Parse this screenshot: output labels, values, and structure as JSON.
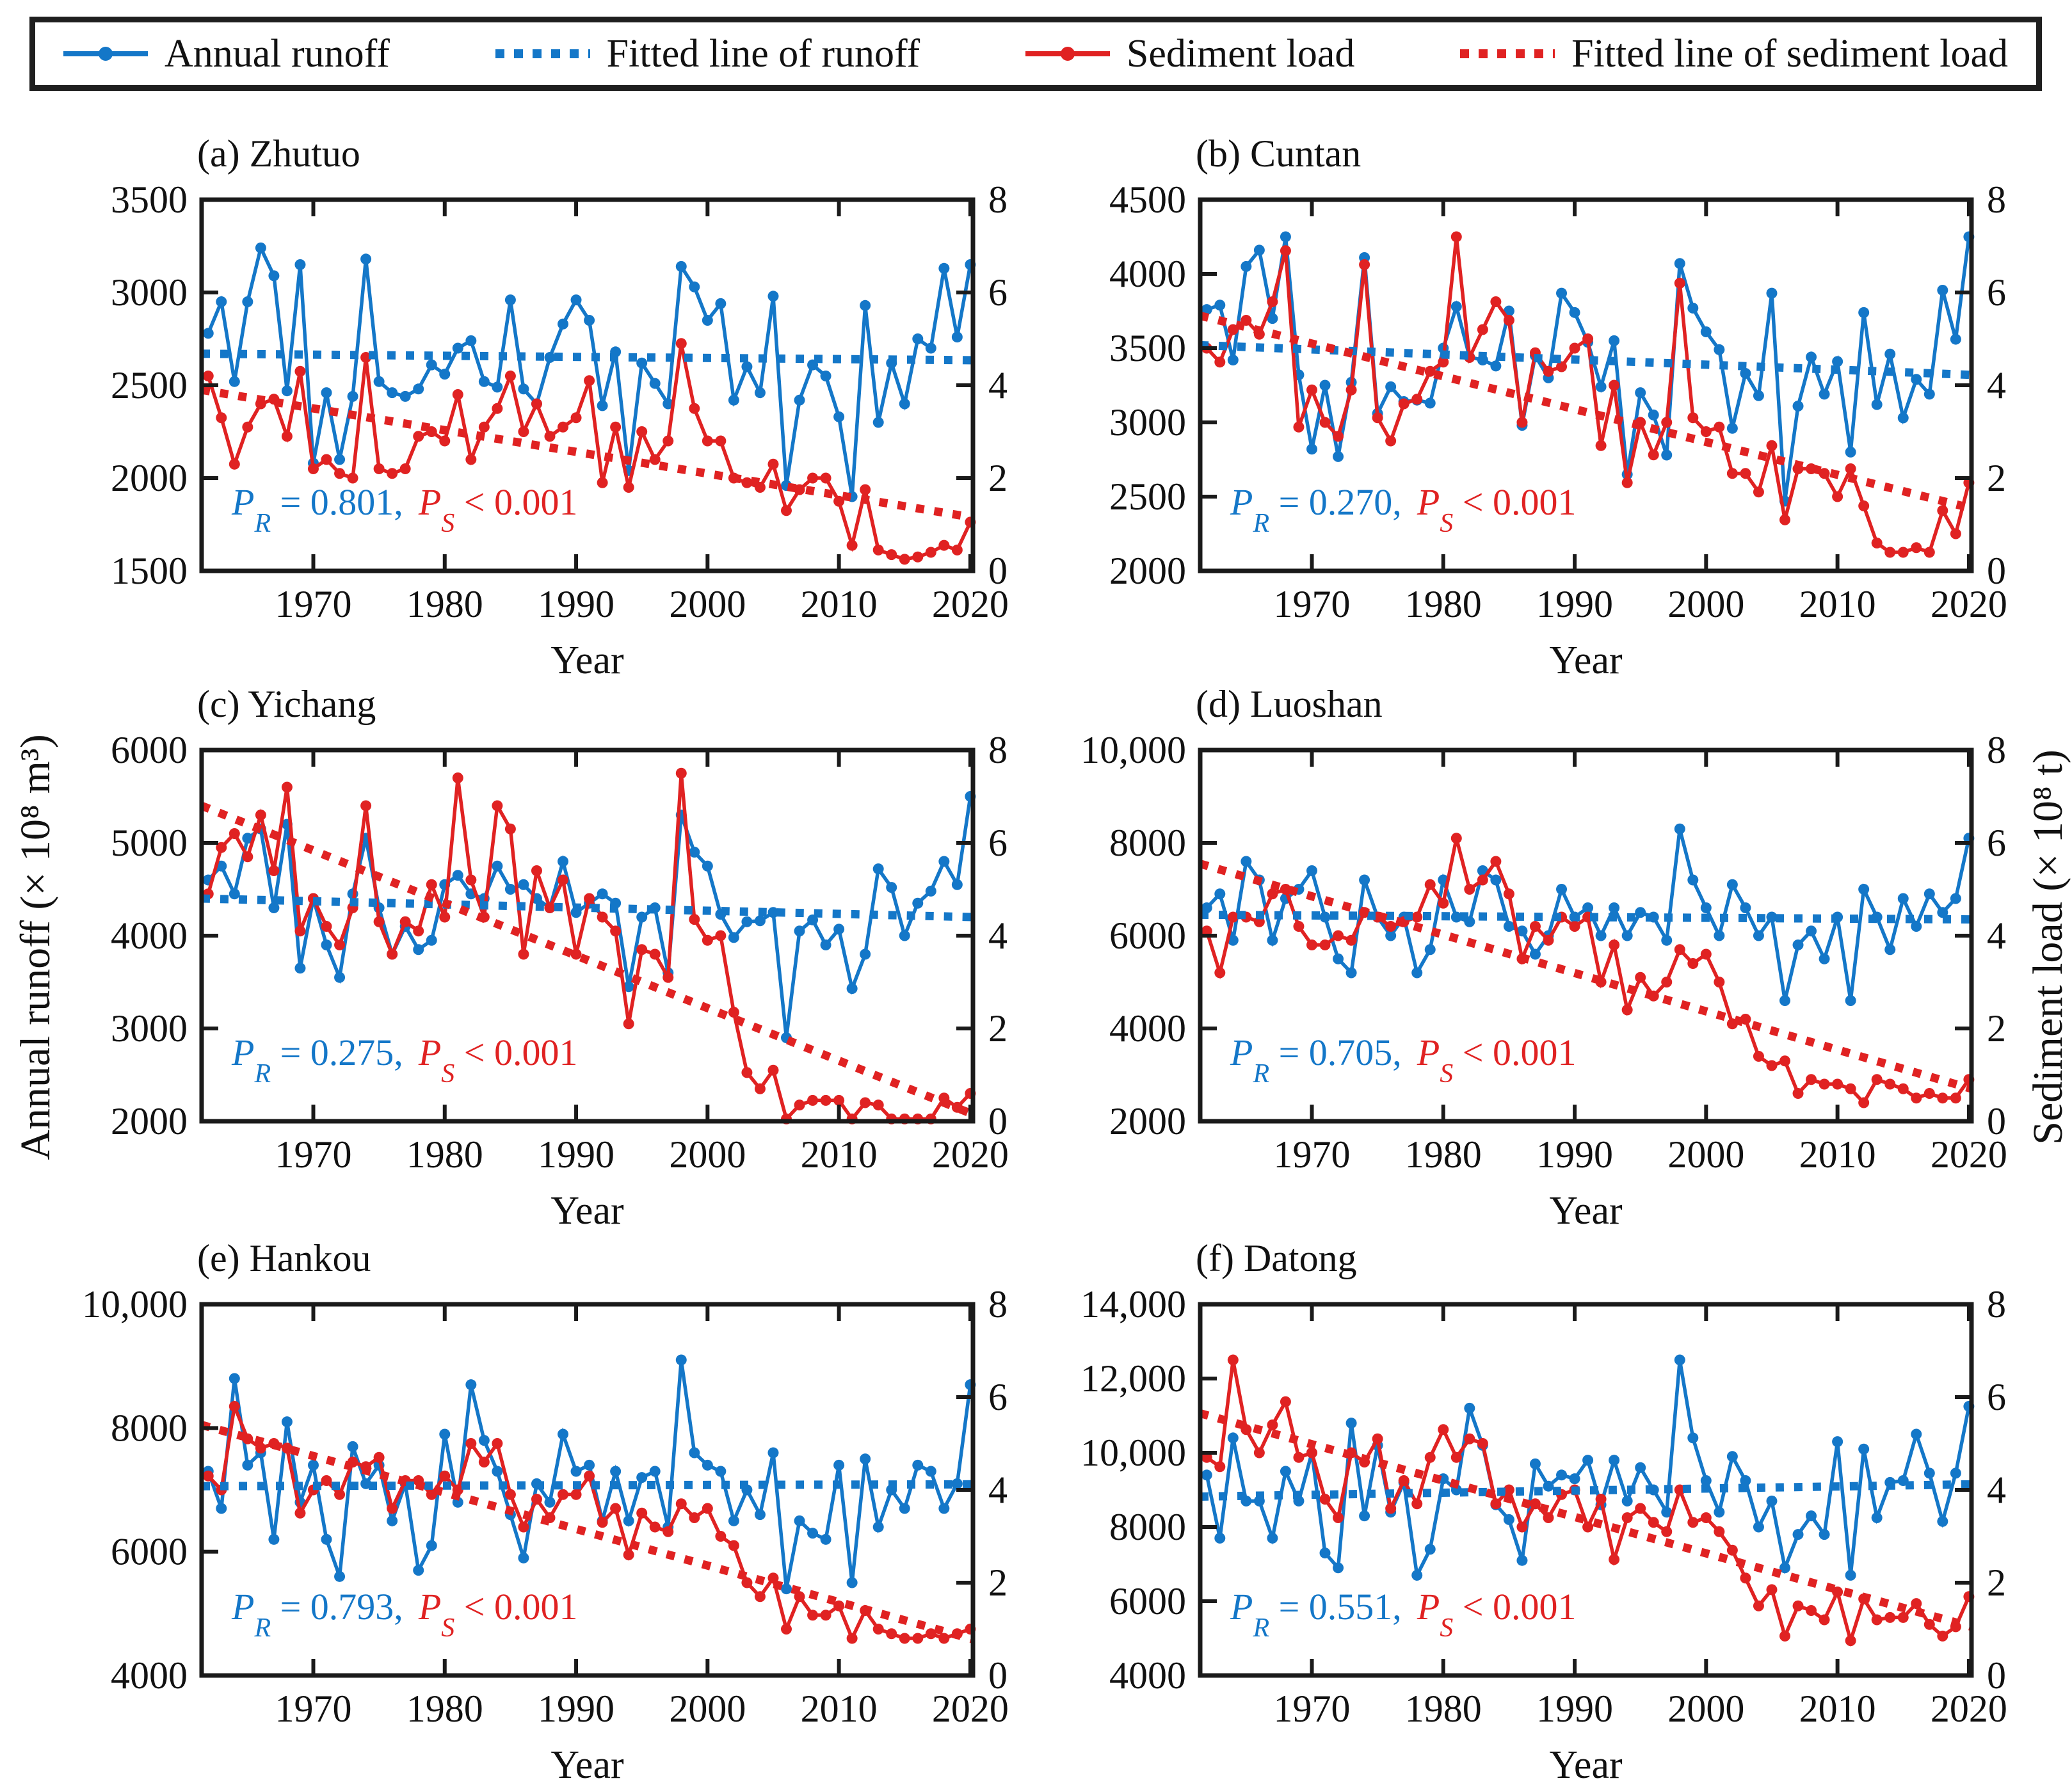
{
  "legend": {
    "border_color": "#1f1f1f",
    "items": [
      {
        "label": "Annual runoff",
        "color": "#1477C8",
        "style": "solid-with-dot"
      },
      {
        "label": "Fitted line of runoff",
        "color": "#1477C8",
        "style": "dotted"
      },
      {
        "label": "Sediment load",
        "color": "#E02222",
        "style": "solid-with-dot"
      },
      {
        "label": "Fitted line of sediment load",
        "color": "#E02222",
        "style": "dotted"
      }
    ]
  },
  "labels": {
    "left_axis": "Annual runoff (× 10⁸ m³)",
    "right_axis": "Sediment load (× 10⁸ t)",
    "x_axis": "Year",
    "p_symbol": "P",
    "runoff_sub": "R",
    "sed_sub": "S"
  },
  "colors": {
    "runoff": "#1477C8",
    "sediment": "#E02222",
    "frame": "#1a1a1a"
  },
  "chart_data": {
    "type": "line",
    "x": {
      "start_year": 1962,
      "end_year": 2020,
      "xlim": [
        1961.5,
        2020.2
      ],
      "ticks": [
        1970,
        1980,
        1990,
        2000,
        2010,
        2020
      ]
    },
    "right_ylim": [
      0,
      8
    ],
    "right_ticks": [
      0,
      2,
      4,
      6,
      8
    ],
    "legend_position": "top",
    "grid": false,
    "panels": [
      {
        "id": "a",
        "title": "(a) Zhutuo",
        "pr_text": " = 0.801,",
        "ps_text": " < 0.001",
        "runoff_ylim": [
          1500,
          3500
        ],
        "runoff_ticks": [
          1500,
          2000,
          2500,
          3000,
          3500
        ],
        "runoff": [
          2780,
          2950,
          2520,
          2950,
          3240,
          3090,
          2470,
          3150,
          2080,
          2460,
          2100,
          2440,
          3180,
          2520,
          2460,
          2440,
          2480,
          2610,
          2560,
          2700,
          2740,
          2520,
          2490,
          2960,
          2480,
          2400,
          2650,
          2830,
          2960,
          2850,
          2390,
          2680,
          2040,
          2620,
          2510,
          2400,
          3140,
          3030,
          2850,
          2940,
          2420,
          2600,
          2460,
          2980,
          1960,
          2420,
          2610,
          2550,
          2330,
          1900,
          2930,
          2300,
          2620,
          2400,
          2750,
          2700,
          3130,
          2760,
          3150
        ],
        "sediment": [
          4.2,
          3.3,
          2.3,
          3.1,
          3.6,
          3.7,
          2.9,
          4.3,
          2.2,
          2.4,
          2.1,
          2.0,
          4.6,
          2.2,
          2.1,
          2.2,
          2.9,
          3.0,
          2.8,
          3.8,
          2.4,
          3.1,
          3.5,
          4.2,
          3.0,
          3.6,
          2.9,
          3.1,
          3.3,
          4.1,
          1.9,
          3.1,
          1.8,
          3.0,
          2.4,
          2.8,
          4.9,
          3.5,
          2.8,
          2.8,
          2.0,
          1.9,
          1.8,
          2.3,
          1.3,
          1.75,
          2.0,
          2.0,
          1.5,
          0.55,
          1.75,
          0.45,
          0.35,
          0.25,
          0.3,
          0.4,
          0.55,
          0.45,
          1.05
        ],
        "runoff_fit": [
          2670,
          2635
        ],
        "sediment_fit": [
          3.9,
          1.15
        ]
      },
      {
        "id": "b",
        "title": "(b) Cuntan",
        "pr_text": " = 0.270,",
        "ps_text": " < 0.001",
        "runoff_ylim": [
          2000,
          4500
        ],
        "runoff_ticks": [
          2000,
          2500,
          3000,
          3500,
          4000,
          4500
        ],
        "runoff": [
          3760,
          3790,
          3420,
          4050,
          4160,
          3700,
          4250,
          3320,
          2820,
          3250,
          2770,
          3270,
          4110,
          3060,
          3240,
          3140,
          3150,
          3130,
          3500,
          3780,
          3440,
          3420,
          3380,
          3750,
          2980,
          3450,
          3300,
          3870,
          3740,
          3540,
          3240,
          3550,
          2650,
          3200,
          3050,
          2780,
          4070,
          3770,
          3610,
          3490,
          2960,
          3330,
          3180,
          3870,
          2470,
          3110,
          3440,
          3190,
          3410,
          2800,
          3740,
          3120,
          3460,
          3030,
          3290,
          3190,
          3890,
          3560,
          4250
        ],
        "sediment": [
          4.8,
          4.5,
          5.2,
          5.4,
          5.1,
          5.8,
          6.9,
          3.1,
          3.9,
          3.2,
          2.9,
          3.9,
          6.6,
          3.3,
          2.8,
          3.6,
          3.7,
          4.3,
          4.5,
          7.2,
          4.6,
          5.2,
          5.8,
          5.4,
          3.2,
          4.7,
          4.3,
          4.4,
          4.8,
          5.0,
          2.7,
          4.0,
          1.9,
          3.2,
          2.5,
          3.2,
          6.2,
          3.3,
          3.0,
          3.1,
          2.1,
          2.1,
          1.7,
          2.7,
          1.1,
          2.2,
          2.2,
          2.1,
          1.6,
          2.2,
          1.4,
          0.6,
          0.4,
          0.4,
          0.5,
          0.4,
          1.3,
          0.8,
          1.9
        ],
        "runoff_fit": [
          3520,
          3320
        ],
        "sediment_fit": [
          5.5,
          1.35
        ]
      },
      {
        "id": "c",
        "title": "(c) Yichang",
        "pr_text": " = 0.275,",
        "ps_text": " < 0.001",
        "runoff_ylim": [
          2000,
          6000
        ],
        "runoff_ticks": [
          2000,
          3000,
          4000,
          5000,
          6000
        ],
        "runoff": [
          4600,
          4750,
          4450,
          5050,
          5150,
          4300,
          5200,
          3650,
          4400,
          3900,
          3550,
          4450,
          5050,
          4300,
          3800,
          4100,
          3850,
          3950,
          4550,
          4650,
          4450,
          4400,
          4750,
          4500,
          4550,
          4400,
          4300,
          4800,
          4250,
          4350,
          4450,
          4350,
          3450,
          4200,
          4300,
          3600,
          5300,
          4900,
          4750,
          4230,
          3980,
          4150,
          4160,
          4250,
          2900,
          4050,
          4170,
          3900,
          4070,
          3430,
          3800,
          4720,
          4520,
          4000,
          4350,
          4480,
          4800,
          4550,
          5500
        ],
        "sediment": [
          4.9,
          5.9,
          6.2,
          5.7,
          6.6,
          5.4,
          7.2,
          4.1,
          4.8,
          4.2,
          3.8,
          4.6,
          6.8,
          4.3,
          3.6,
          4.3,
          4.1,
          5.1,
          4.4,
          7.4,
          5.2,
          4.4,
          6.8,
          6.3,
          3.6,
          5.4,
          4.6,
          5.2,
          3.6,
          4.8,
          4.4,
          4.1,
          2.1,
          3.7,
          3.6,
          3.1,
          7.5,
          4.35,
          3.9,
          4.0,
          2.35,
          1.05,
          0.7,
          1.1,
          0.05,
          0.35,
          0.45,
          0.45,
          0.45,
          0.05,
          0.4,
          0.35,
          0.05,
          0.05,
          0.05,
          0.05,
          0.5,
          0.3,
          0.6
        ],
        "runoff_fit": [
          4400,
          4200
        ],
        "sediment_fit": [
          6.8,
          0.15
        ]
      },
      {
        "id": "d",
        "title": "(d) Luoshan",
        "pr_text": " = 0.705,",
        "ps_text": " < 0.001",
        "runoff_ylim": [
          2000,
          10000
        ],
        "runoff_ticks": [
          2000,
          4000,
          6000,
          8000,
          10000
        ],
        "runoff": [
          6600,
          6900,
          5900,
          7600,
          7200,
          5900,
          6800,
          7000,
          7400,
          6400,
          5500,
          5200,
          7200,
          6400,
          6000,
          6400,
          5200,
          5700,
          7200,
          6400,
          6300,
          7400,
          7200,
          6200,
          6100,
          5600,
          6000,
          7000,
          6400,
          6600,
          6000,
          6600,
          6000,
          6500,
          6400,
          5900,
          8300,
          7200,
          6600,
          6000,
          7100,
          6600,
          6000,
          6400,
          4600,
          5800,
          6100,
          5500,
          6400,
          4600,
          7000,
          6400,
          5700,
          6800,
          6200,
          6900,
          6500,
          6800,
          8100
        ],
        "sediment": [
          4.1,
          3.2,
          4.4,
          4.4,
          4.3,
          4.9,
          5.0,
          4.2,
          3.8,
          3.8,
          4.0,
          3.9,
          4.5,
          4.4,
          4.2,
          4.3,
          4.4,
          5.1,
          4.7,
          6.1,
          5.0,
          5.2,
          5.6,
          4.9,
          3.5,
          4.2,
          3.9,
          4.4,
          4.2,
          4.4,
          3.0,
          3.8,
          2.4,
          3.1,
          2.7,
          3.0,
          3.7,
          3.4,
          3.6,
          3.0,
          2.1,
          2.2,
          1.4,
          1.2,
          1.3,
          0.6,
          0.9,
          0.8,
          0.8,
          0.7,
          0.4,
          0.9,
          0.8,
          0.7,
          0.5,
          0.6,
          0.5,
          0.5,
          0.9
        ],
        "runoff_fit": [
          6450,
          6350
        ],
        "sediment_fit": [
          5.55,
          0.7
        ]
      },
      {
        "id": "e",
        "title": "(e) Hankou",
        "pr_text": " = 0.793,",
        "ps_text": " < 0.001",
        "runoff_ylim": [
          4000,
          10000
        ],
        "runoff_ticks": [
          4000,
          6000,
          8000,
          10000
        ],
        "runoff": [
          7300,
          6700,
          8800,
          7400,
          7600,
          6200,
          8100,
          6800,
          7400,
          6200,
          5600,
          7700,
          7100,
          7400,
          6500,
          7100,
          5700,
          6100,
          7900,
          6800,
          8700,
          7800,
          7300,
          6600,
          5900,
          7100,
          6800,
          7900,
          7300,
          7400,
          6500,
          7300,
          6500,
          7200,
          7300,
          6400,
          9100,
          7600,
          7400,
          7300,
          6500,
          7000,
          6600,
          7600,
          5400,
          6500,
          6300,
          6200,
          7400,
          5500,
          7500,
          6400,
          7000,
          6700,
          7400,
          7300,
          6700,
          7100,
          8700
        ],
        "sediment": [
          4.3,
          4.0,
          5.8,
          5.1,
          4.9,
          5.0,
          4.9,
          3.5,
          4.0,
          4.2,
          3.9,
          4.6,
          4.5,
          4.7,
          3.6,
          4.2,
          4.2,
          3.9,
          4.3,
          4.0,
          5.0,
          4.6,
          5.0,
          3.9,
          3.2,
          3.8,
          3.4,
          3.9,
          3.9,
          4.3,
          3.3,
          3.6,
          2.6,
          3.5,
          3.2,
          3.1,
          3.7,
          3.4,
          3.6,
          3.0,
          2.8,
          2.0,
          1.7,
          2.1,
          1.0,
          1.7,
          1.3,
          1.3,
          1.5,
          0.8,
          1.4,
          1.0,
          0.9,
          0.8,
          0.8,
          0.9,
          0.8,
          0.9,
          1.0
        ],
        "runoff_fit": [
          7060,
          7090
        ],
        "sediment_fit": [
          5.4,
          0.78
        ]
      },
      {
        "id": "f",
        "title": "(f) Datong",
        "pr_text": " = 0.551,",
        "ps_text": " < 0.001",
        "runoff_ylim": [
          4000,
          14000
        ],
        "runoff_ticks": [
          4000,
          6000,
          8000,
          10000,
          12000,
          14000
        ],
        "runoff": [
          9400,
          7700,
          10400,
          8700,
          8700,
          7700,
          9500,
          8700,
          10000,
          7300,
          6900,
          10800,
          8300,
          10200,
          8400,
          9200,
          6700,
          7400,
          9300,
          9000,
          11200,
          10200,
          8600,
          8200,
          7100,
          9700,
          9100,
          9400,
          9300,
          9800,
          8600,
          9800,
          8700,
          9600,
          9000,
          8400,
          12500,
          10400,
          9250,
          8400,
          9900,
          9250,
          8000,
          8700,
          6900,
          7800,
          8300,
          7800,
          10300,
          6700,
          10100,
          8250,
          9200,
          9250,
          10500,
          9450,
          8150,
          9450,
          11250
        ],
        "sediment": [
          4.7,
          4.5,
          6.8,
          5.3,
          4.8,
          5.4,
          5.9,
          4.7,
          4.8,
          3.8,
          3.4,
          4.8,
          4.6,
          5.1,
          3.6,
          4.2,
          3.7,
          4.7,
          5.3,
          4.7,
          5.1,
          5.0,
          3.7,
          4.0,
          3.2,
          3.7,
          3.4,
          3.9,
          4.0,
          3.2,
          3.8,
          2.5,
          3.4,
          3.6,
          3.3,
          3.1,
          4.0,
          3.3,
          3.4,
          3.1,
          2.7,
          2.1,
          1.5,
          1.85,
          0.85,
          1.5,
          1.4,
          1.2,
          1.8,
          0.75,
          1.65,
          1.2,
          1.25,
          1.25,
          1.55,
          1.1,
          0.85,
          1.05,
          1.7
        ],
        "runoff_fit": [
          8820,
          9150
        ],
        "sediment_fit": [
          5.65,
          1.05
        ]
      }
    ]
  }
}
